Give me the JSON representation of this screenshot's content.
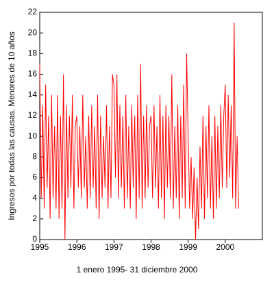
{
  "chart_data": {
    "type": "line",
    "xlabel": "1 enero 1995- 31 diciembre 2000",
    "ylabel": "Ingresos por todas las causas. Menores de 10 años",
    "x": [
      1995.0,
      1995.04,
      1995.08,
      1995.12,
      1995.16,
      1995.2,
      1995.24,
      1995.28,
      1995.32,
      1995.36,
      1995.4,
      1995.44,
      1995.48,
      1995.52,
      1995.56,
      1995.6,
      1995.64,
      1995.68,
      1995.72,
      1995.76,
      1995.8,
      1995.84,
      1995.88,
      1995.92,
      1995.96,
      1996.0,
      1996.04,
      1996.08,
      1996.12,
      1996.16,
      1996.2,
      1996.24,
      1996.28,
      1996.32,
      1996.36,
      1996.4,
      1996.44,
      1996.48,
      1996.52,
      1996.56,
      1996.6,
      1996.64,
      1996.68,
      1996.72,
      1996.76,
      1996.8,
      1996.84,
      1996.88,
      1996.92,
      1996.96,
      1997.0,
      1997.04,
      1997.08,
      1997.12,
      1997.16,
      1997.2,
      1997.24,
      1997.28,
      1997.32,
      1997.36,
      1997.4,
      1997.44,
      1997.48,
      1997.52,
      1997.56,
      1997.6,
      1997.64,
      1997.68,
      1997.72,
      1997.76,
      1997.8,
      1997.84,
      1997.88,
      1997.92,
      1997.96,
      1998.0,
      1998.04,
      1998.08,
      1998.12,
      1998.16,
      1998.2,
      1998.24,
      1998.28,
      1998.32,
      1998.36,
      1998.4,
      1998.44,
      1998.48,
      1998.52,
      1998.56,
      1998.6,
      1998.64,
      1998.68,
      1998.72,
      1998.76,
      1998.8,
      1998.84,
      1998.88,
      1998.92,
      1998.96,
      1999.0,
      1999.04,
      1999.08,
      1999.12,
      1999.16,
      1999.2,
      1999.24,
      1999.28,
      1999.32,
      1999.36,
      1999.4,
      1999.44,
      1999.48,
      1999.52,
      1999.56,
      1999.6,
      1999.64,
      1999.68,
      1999.72,
      1999.76,
      1999.8,
      1999.84,
      1999.88,
      1999.92,
      1999.96,
      2000.0,
      2000.04,
      2000.08,
      2000.12,
      2000.16,
      2000.2,
      2000.24,
      2000.28,
      2000.32,
      2000.36
    ],
    "series": [
      {
        "color": "#ff0000",
        "values": [
          17,
          4,
          13,
          3,
          15,
          5,
          12,
          2,
          14,
          4,
          11,
          3,
          14,
          2,
          12,
          3,
          16,
          0,
          13,
          4,
          12,
          5,
          14,
          3,
          11,
          12,
          5,
          11,
          4,
          14,
          5,
          10,
          3,
          12,
          4,
          13,
          5,
          11,
          3,
          14,
          2,
          12,
          4,
          10,
          5,
          13,
          3,
          11,
          4,
          16,
          15,
          6,
          16,
          4,
          13,
          5,
          12,
          3,
          14,
          4,
          11,
          3,
          13,
          5,
          12,
          2,
          14,
          4,
          17,
          3,
          12,
          4,
          13,
          5,
          11,
          12,
          4,
          13,
          5,
          11,
          3,
          14,
          4,
          12,
          2,
          13,
          5,
          12,
          4,
          16,
          3,
          11,
          4,
          13,
          2,
          12,
          4,
          15,
          3,
          18,
          10,
          3,
          8,
          2,
          7,
          0,
          6,
          1,
          9,
          3,
          12,
          2,
          11,
          4,
          13,
          3,
          10,
          2,
          12,
          3,
          11,
          4,
          13,
          5,
          12,
          15,
          5,
          14,
          6,
          13,
          4,
          21,
          3,
          10,
          3
        ]
      }
    ],
    "xlim": [
      1995,
      2001
    ],
    "xticks": [
      1995,
      1996,
      1997,
      1998,
      1999,
      2000
    ],
    "ylim": [
      0,
      22
    ],
    "yticks": [
      0,
      2,
      4,
      6,
      8,
      10,
      12,
      14,
      16,
      18,
      20,
      22
    ]
  }
}
